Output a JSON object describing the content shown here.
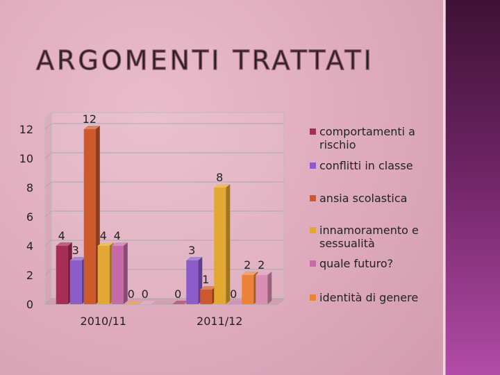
{
  "chart_data": {
    "type": "bar",
    "title": "ARGOMENTI TRATTATI",
    "categories": [
      "2010/11",
      "2011/12"
    ],
    "series": [
      {
        "name": "comportamenti a rischio",
        "color": "#a82d55",
        "values": [
          4,
          0
        ]
      },
      {
        "name": "conflitti in classe",
        "color": "#8c5cc8",
        "values": [
          3,
          3
        ]
      },
      {
        "name": "ansia scolastica",
        "color": "#cc5a2c",
        "values": [
          12,
          1
        ]
      },
      {
        "name": "innamoramento e sessualità",
        "color": "#e2a832",
        "values": [
          4,
          8
        ]
      },
      {
        "name": "quale futuro?",
        "color": "#c76aa8",
        "values": [
          4,
          0
        ]
      },
      {
        "name": "identità di genere",
        "color": "#ea8338",
        "values": [
          0,
          2
        ]
      },
      {
        "name": null,
        "color": "#d98fb4",
        "values": [
          0,
          2
        ]
      }
    ],
    "ylim": [
      0,
      12
    ],
    "yticks": [
      0,
      2,
      4,
      6,
      8,
      10,
      12
    ],
    "grid": true,
    "legend": "right"
  }
}
